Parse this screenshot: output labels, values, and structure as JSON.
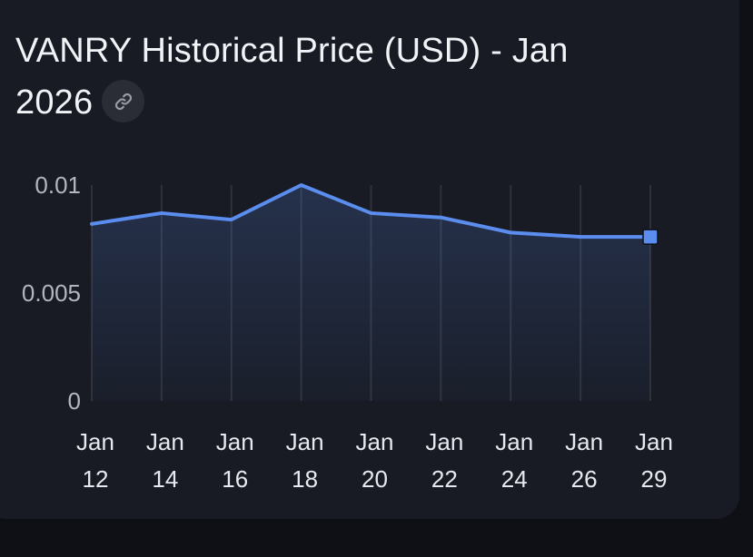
{
  "card": {
    "title_line1": "VANRY Historical Price (USD) - Jan",
    "title_line2": "2026",
    "link_icon": "link-icon"
  },
  "colors": {
    "line": "#5b8def",
    "card_bg": "#181b24",
    "page_bg": "#0e1016",
    "grid": "#2e313a"
  },
  "chart_data": {
    "type": "area",
    "title": "VANRY Historical Price (USD) - Jan 2026",
    "xlabel": "",
    "ylabel": "",
    "x": [
      "2026-01-12",
      "2026-01-14",
      "2026-01-16",
      "2026-01-18",
      "2026-01-20",
      "2026-01-22",
      "2026-01-24",
      "2026-01-26",
      "2026-01-29"
    ],
    "x_tick_labels": [
      [
        "Jan",
        "12"
      ],
      [
        "Jan",
        "14"
      ],
      [
        "Jan",
        "16"
      ],
      [
        "Jan",
        "18"
      ],
      [
        "Jan",
        "20"
      ],
      [
        "Jan",
        "22"
      ],
      [
        "Jan",
        "24"
      ],
      [
        "Jan",
        "26"
      ],
      [
        "Jan",
        "29"
      ]
    ],
    "series": [
      {
        "values": [
          0.0082,
          0.0087,
          0.0084,
          0.01,
          0.0087,
          0.0085,
          0.0078,
          0.0076,
          0.0076
        ]
      }
    ],
    "ylim": [
      0,
      0.01
    ],
    "y_ticks": [
      0,
      0.005,
      0.01
    ],
    "y_tick_labels": [
      "0",
      "0.005",
      "0.01"
    ],
    "grid": "vertical",
    "legend": "none",
    "last_point_marker": "square"
  }
}
